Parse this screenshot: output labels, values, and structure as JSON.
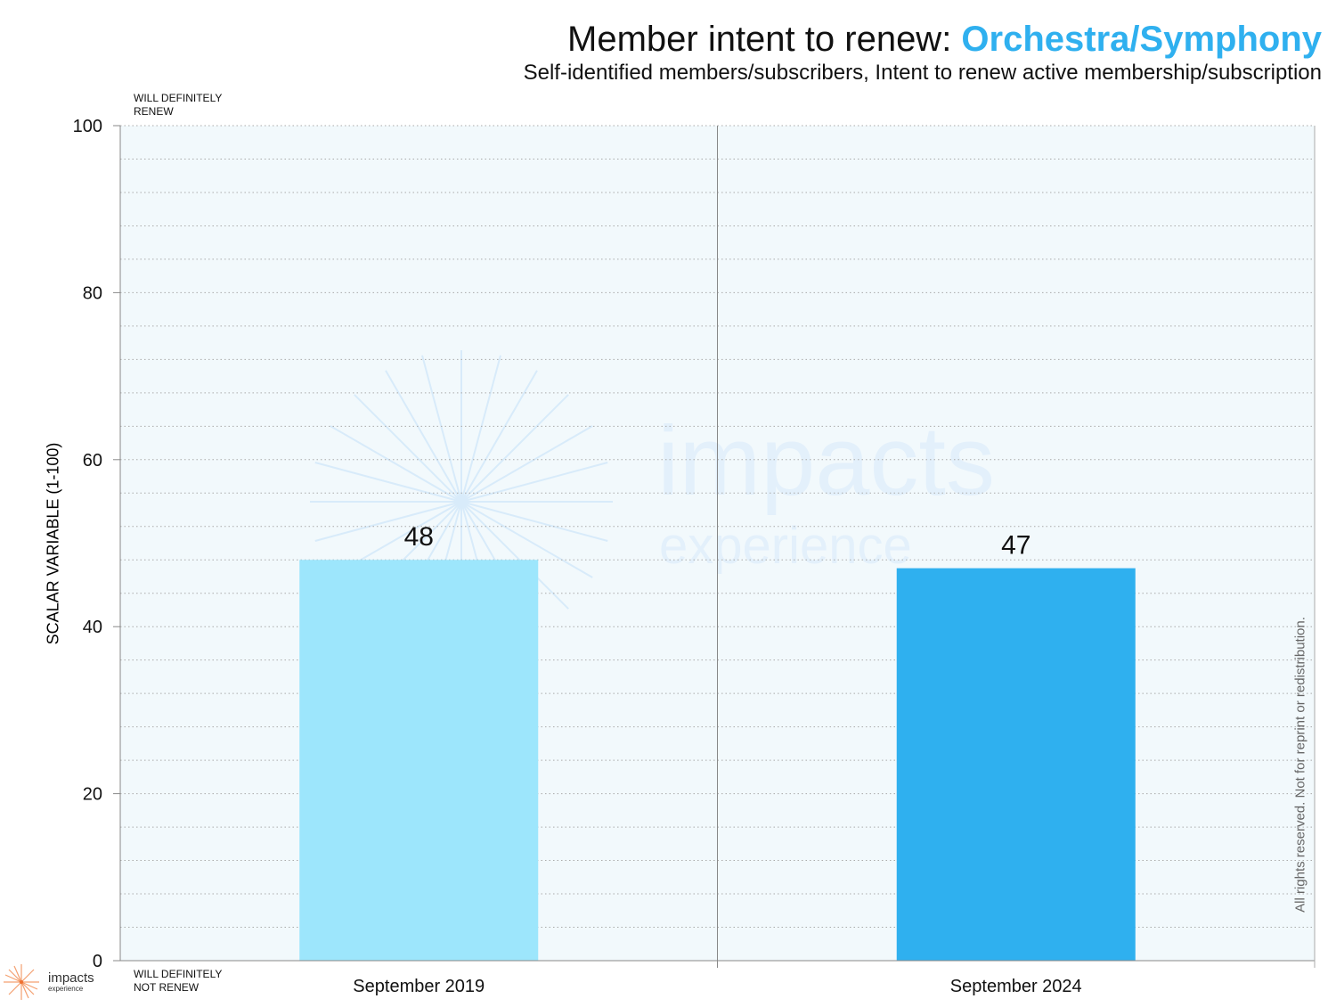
{
  "title": {
    "prefix": "Member intent to renew: ",
    "highlight": "Orchestra/Symphony"
  },
  "subtitle": "Self-identified members/subscribers, Intent to renew active membership/subscription",
  "top_anchor": [
    "WILL DEFINITELY",
    "RENEW"
  ],
  "bottom_anchor": [
    "WILL DEFINITELY",
    "NOT RENEW"
  ],
  "rights": "All rights reserved. Not for reprint or redistribution.",
  "logo": {
    "name": "impacts",
    "sub": "experience"
  },
  "watermark": {
    "name": "impacts",
    "sub": "experience"
  },
  "chart_data": {
    "type": "bar",
    "categories": [
      "September 2019",
      "September 2024"
    ],
    "values": [
      48,
      47
    ],
    "colors": [
      "#9de6fc",
      "#2fb0ef"
    ],
    "title": "Member intent to renew: Orchestra/Symphony",
    "ylabel": "SCALAR VARIABLE (1-100)",
    "ylim": [
      0,
      100
    ],
    "yticks": [
      0,
      20,
      40,
      60,
      80,
      100
    ],
    "grid": true
  }
}
